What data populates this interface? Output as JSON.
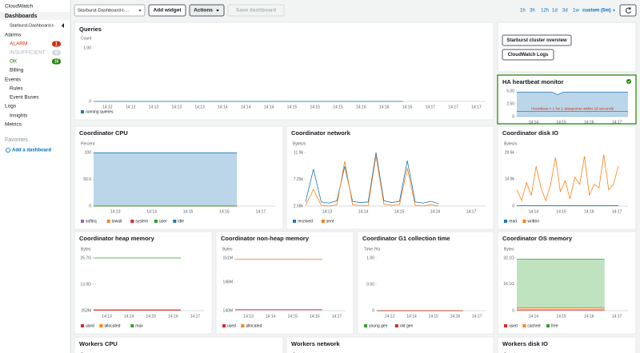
{
  "sidebar": {
    "service": "CloudWatch",
    "items": [
      {
        "label": "Dashboards"
      },
      {
        "label": "Starburst-Dashboard-t-"
      },
      {
        "label": "Alarms"
      },
      {
        "label": "ALARM",
        "badge": 1
      },
      {
        "label": "INSUFFICIENT",
        "badge": 0
      },
      {
        "label": "OK",
        "badge": 16
      },
      {
        "label": "Billing"
      },
      {
        "label": "Events"
      },
      {
        "label": "Rules"
      },
      {
        "label": "Event Buses"
      },
      {
        "label": "Logs"
      },
      {
        "label": "Insights"
      },
      {
        "label": "Metrics"
      }
    ],
    "favorites": "Favorites",
    "add_dashboard": "Add a dashboard"
  },
  "toolbar": {
    "dashboard": "Starburst-Dashboard-t-...",
    "add_widget": "Add widget",
    "actions": "Actions",
    "save": "Save dashboard",
    "ranges": [
      "1h",
      "3h",
      "12h",
      "1d",
      "3d",
      "1w"
    ],
    "custom": "custom (5m)"
  },
  "links": [
    "Starburst cluster overview",
    "CloudWatch Logs"
  ],
  "widgets": [
    {
      "title": "Queries",
      "unit": "Count",
      "ylim": [
        0,
        1
      ],
      "yticks": [
        {
          "value": 1,
          "label": "1.00"
        },
        0
      ],
      "xticks": [
        "14:12",
        "14:12",
        "14:13",
        "14:13",
        "14:13",
        "14:14",
        "14:14",
        "14:14",
        "14:15",
        "14:15",
        "14:15",
        "14:16",
        "14:16",
        "14:16",
        "14:17",
        "14:17",
        "14:17"
      ],
      "series": [
        {
          "name": "running queries",
          "color": "#1f77b4",
          "values": [
            0,
            0,
            0,
            0,
            0,
            0,
            0,
            0,
            0,
            0,
            0,
            0,
            0,
            0,
            0,
            0,
            null,
            null,
            null,
            null
          ]
        }
      ]
    },
    {
      "title": "HA heartbeat monitor",
      "ylim": [
        0,
        5
      ],
      "yticks": [
        {
          "value": 5,
          "label": "5.00"
        },
        {
          "value": 2.5,
          "label": "2.50"
        },
        0
      ],
      "xticks": [
        "14:14",
        "14:15",
        "14:16",
        "14:17"
      ],
      "threshold": 1,
      "annotation": "Heartbeat < 1 for 1 datapoints within 10 seconds",
      "area": true,
      "series": [
        {
          "color": "#1f77b4",
          "values": [
            4.8,
            4.8,
            4.8,
            4.8,
            4.8,
            4.8,
            4.8,
            4.3,
            4.8,
            4.8,
            4.8,
            4.8,
            4.8,
            4.8,
            4.8,
            4.8,
            4.8,
            4.8,
            4.8,
            4.8
          ]
        }
      ]
    },
    {
      "title": "Coordinator CPU",
      "unit": "Percent",
      "ylim": [
        0,
        100
      ],
      "yticks": [
        100,
        {
          "value": 50,
          "label": "50.0"
        },
        0
      ],
      "stacked": true,
      "xticks": [
        "14:13",
        "14:14",
        "14:15",
        "14:16",
        "14:17"
      ],
      "series": [
        {
          "name": "softirq",
          "color": "#9467bd",
          "values": [
            0,
            0,
            0,
            0,
            0,
            0,
            0,
            0,
            0,
            0,
            0,
            0,
            0,
            0,
            0,
            0,
            null,
            null,
            null,
            null
          ]
        },
        {
          "name": "iowait",
          "color": "#ff7f0e",
          "values": [
            0,
            0,
            0,
            0,
            0,
            0,
            0,
            0,
            0,
            0,
            0,
            0,
            0,
            0,
            0,
            0,
            null,
            null,
            null,
            null
          ]
        },
        {
          "name": "system",
          "color": "#d62728",
          "values": [
            0,
            0,
            0,
            0,
            0,
            0,
            0,
            0,
            0,
            0,
            0,
            0,
            0,
            0,
            0,
            0,
            null,
            null,
            null,
            null
          ]
        },
        {
          "name": "user",
          "color": "#2ca02c",
          "values": [
            0,
            0,
            0,
            0,
            0,
            0,
            0,
            0,
            0,
            0,
            0,
            0,
            0,
            0,
            0,
            0,
            null,
            null,
            null,
            null
          ]
        },
        {
          "name": "idle",
          "color": "#1f77b4",
          "values": [
            99.5,
            99.5,
            99.5,
            99.5,
            99.5,
            99.5,
            99.5,
            99.5,
            99.5,
            99.5,
            99.5,
            99.5,
            99.5,
            99.5,
            99.5,
            99.5,
            null,
            null,
            null,
            null
          ]
        }
      ]
    },
    {
      "title": "Coordinator network",
      "unit": "Bytes/s",
      "ylim": [
        2580,
        11900
      ],
      "yticks": [
        {
          "value": 11900,
          "label": "11.9k"
        },
        {
          "value": 7250,
          "label": "7.25k"
        },
        {
          "value": 2580,
          "label": "2.58k"
        }
      ],
      "xticks": [
        "14:13",
        "14:14",
        "14:15",
        "14:16",
        "14:17"
      ],
      "series": [
        {
          "name": "received",
          "color": "#1f77b4",
          "values": [
            3300,
            9000,
            3300,
            3100,
            3500,
            9500,
            3400,
            3200,
            3300,
            11900,
            3500,
            3200,
            3400,
            10500,
            3300,
            3100,
            3400,
            3000,
            null,
            null,
            null,
            null,
            null,
            null
          ]
        },
        {
          "name": "sent",
          "color": "#ff7f0e",
          "values": [
            2700,
            5500,
            2700,
            2600,
            2800,
            10400,
            2800,
            2650,
            2700,
            11300,
            2900,
            2700,
            2800,
            9200,
            2700,
            2600,
            2800,
            2600,
            null,
            null,
            null,
            null,
            null,
            null
          ]
        }
      ]
    },
    {
      "title": "Coordinator disk IO",
      "unit": "Bytes/s",
      "ylim": [
        0,
        29600
      ],
      "yticks": [
        {
          "value": 29600,
          "label": "29.6k"
        },
        {
          "value": 14900,
          "label": "14.9k"
        },
        0
      ],
      "xticks": [
        "14:14",
        "14:15",
        "14:16",
        "14:17"
      ],
      "series": [
        {
          "name": "read",
          "color": "#1f77b4",
          "values": [
            200,
            200,
            200,
            200,
            200,
            200,
            200,
            200,
            200,
            200,
            200,
            200,
            200,
            200,
            200,
            200,
            200,
            200,
            200,
            200,
            200,
            200,
            null,
            null
          ]
        },
        {
          "name": "written",
          "color": "#ff7f0e",
          "values": [
            9000,
            3000,
            13000,
            6000,
            22000,
            10000,
            3000,
            12000,
            27000,
            8000,
            14000,
            4000,
            16000,
            12000,
            27500,
            6000,
            12000,
            10000,
            28500,
            9000,
            12000,
            22000,
            null,
            null
          ]
        }
      ]
    },
    {
      "title": "Coordinator heap memory",
      "unit": "Bytes",
      "ylim": [
        253000000,
        25700000000
      ],
      "yticks": [
        {
          "value": 25700000000,
          "label": "25.7G"
        },
        {
          "value": 13000000000,
          "label": "13.0G"
        },
        {
          "value": 253000000,
          "label": "253M"
        }
      ],
      "xticks": [
        "14:13",
        "14:14",
        "14:15",
        "14:16",
        "14:17"
      ],
      "series": [
        {
          "name": "used",
          "color": "#d62728",
          "values": [
            450000000,
            450000000,
            450000000,
            450000000,
            450000000,
            450000000,
            450000000,
            450000000,
            450000000,
            450000000,
            450000000,
            450000000,
            450000000,
            450000000,
            450000000,
            450000000,
            null,
            null,
            null,
            null
          ]
        },
        {
          "name": "allocated",
          "color": "#ff7f0e",
          "values": [
            750000000,
            750000000,
            750000000,
            750000000,
            750000000,
            750000000,
            750000000,
            750000000,
            750000000,
            750000000,
            750000000,
            750000000,
            750000000,
            750000000,
            750000000,
            750000000,
            null,
            null,
            null,
            null
          ]
        },
        {
          "name": "max",
          "color": "#2ca02c",
          "values": [
            25700000000,
            25700000000,
            25700000000,
            25700000000,
            25700000000,
            25700000000,
            25700000000,
            25700000000,
            25700000000,
            25700000000,
            25700000000,
            25700000000,
            25700000000,
            25700000000,
            25700000000,
            25700000000,
            null,
            null,
            null,
            null
          ]
        }
      ]
    },
    {
      "title": "Coordinator non-heap memory",
      "unit": "Bytes",
      "ylim": [
        140000000,
        151000000
      ],
      "yticks": [
        {
          "value": 151000000,
          "label": "151M"
        },
        {
          "value": 146000000,
          "label": "146M"
        },
        {
          "value": 140000000,
          "label": "140M"
        }
      ],
      "xticks": [
        "14:13",
        "14:14",
        "14:15",
        "14:16",
        "14:17"
      ],
      "series": [
        {
          "name": "used",
          "color": "#d62728",
          "values": [
            140200000,
            140200000,
            140200000,
            140200000,
            140200000,
            140200000,
            140200000,
            140200000,
            140200000,
            140200000,
            140200000,
            140200000,
            140200000,
            140200000,
            140200000,
            140200000,
            null,
            null,
            null,
            null
          ]
        },
        {
          "name": "allocated",
          "color": "#ff7f0e",
          "values": [
            150700000,
            150700000,
            150700000,
            150700000,
            150700000,
            150700000,
            150700000,
            150700000,
            150700000,
            150700000,
            150700000,
            150700000,
            150700000,
            150700000,
            150700000,
            150700000,
            null,
            null,
            null,
            null
          ]
        }
      ]
    },
    {
      "title": "Coordinator G1 collection time",
      "unit": "Time (%)",
      "ylim": [
        0,
        1
      ],
      "yticks": [
        {
          "value": 1,
          "label": "1.00"
        },
        {
          "value": 0.5,
          "label": "0.50"
        },
        0
      ],
      "xticks": [
        "14:13",
        "14:14",
        "14:15",
        "14:16",
        "14:17"
      ],
      "series": [
        {
          "name": "young gen",
          "color": "#2ca02c",
          "values": [
            0,
            0,
            0,
            0,
            0,
            0,
            0,
            0,
            0,
            0,
            0,
            0,
            0,
            0,
            0,
            0,
            null,
            null,
            null,
            null
          ]
        },
        {
          "name": "old gen",
          "color": "#d62728",
          "values": [
            0,
            0,
            0,
            0,
            0,
            0,
            0,
            0,
            0,
            0,
            0,
            0,
            0,
            0,
            0,
            0,
            null,
            null,
            null,
            null
          ]
        }
      ]
    },
    {
      "title": "Coordinator OS memory",
      "unit": "Bytes",
      "ylim": [
        0,
        32100000000
      ],
      "yticks": [
        {
          "value": 32100000000,
          "label": "32.1G"
        },
        {
          "value": 16100000000,
          "label": "16.1G"
        },
        0
      ],
      "stacked": true,
      "xticks": [
        "14:14",
        "14:15",
        "14:16",
        "14:17"
      ],
      "series": [
        {
          "name": "used",
          "color": "#d62728",
          "values": [
            500000000,
            500000000,
            500000000,
            500000000,
            500000000,
            500000000,
            500000000,
            500000000,
            500000000,
            500000000,
            500000000,
            500000000,
            500000000,
            500000000,
            500000000,
            500000000,
            null,
            null,
            null,
            null
          ]
        },
        {
          "name": "cached",
          "color": "#ff7f0e",
          "values": [
            1300000000,
            1300000000,
            1300000000,
            1300000000,
            1300000000,
            1300000000,
            1300000000,
            1300000000,
            1300000000,
            1300000000,
            1300000000,
            1300000000,
            1300000000,
            1300000000,
            1300000000,
            1300000000,
            null,
            null,
            null,
            null
          ]
        },
        {
          "name": "free",
          "color": "#2ca02c",
          "values": [
            29500000000,
            29500000000,
            29500000000,
            29500000000,
            29500000000,
            29500000000,
            29500000000,
            29500000000,
            29500000000,
            29500000000,
            29500000000,
            29500000000,
            29500000000,
            29500000000,
            29500000000,
            29500000000,
            null,
            null,
            null,
            null
          ]
        }
      ]
    },
    {
      "title": "Workers CPU",
      "unit": "Percent"
    },
    {
      "title": "Workers network",
      "unit": "Bytes/s"
    },
    {
      "title": "Workers disk IO",
      "unit": "Bytes/s"
    }
  ]
}
